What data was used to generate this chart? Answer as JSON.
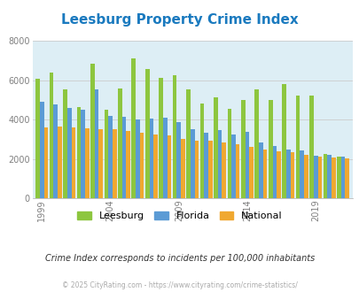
{
  "title": "Leesburg Property Crime Index",
  "title_color": "#1a7abf",
  "years": [
    1999,
    2000,
    2001,
    2002,
    2003,
    2004,
    2005,
    2006,
    2007,
    2008,
    2009,
    2010,
    2011,
    2012,
    2013,
    2014,
    2015,
    2016,
    2017,
    2018,
    2019,
    2020,
    2021
  ],
  "leesburg": [
    6080,
    6390,
    5530,
    4630,
    6850,
    4510,
    5580,
    7100,
    6580,
    6130,
    6280,
    5560,
    4820,
    5130,
    4530,
    5020,
    5530,
    5000,
    5820,
    5240,
    5230,
    2250,
    2120
  ],
  "florida": [
    4920,
    4790,
    4610,
    4510,
    5560,
    4190,
    4140,
    4000,
    4060,
    4110,
    3870,
    3540,
    3340,
    3480,
    3250,
    3380,
    2840,
    2660,
    2490,
    2430,
    2190,
    2210,
    2120
  ],
  "national": [
    3600,
    3640,
    3620,
    3580,
    3500,
    3510,
    3430,
    3340,
    3270,
    3210,
    3040,
    2950,
    2920,
    2860,
    2760,
    2600,
    2490,
    2380,
    2350,
    2230,
    2110,
    2100,
    2050
  ],
  "leesburg_color": "#8dc63f",
  "florida_color": "#5b9bd5",
  "national_color": "#f0a830",
  "bg_color": "#ddeef5",
  "ylim": [
    0,
    8000
  ],
  "yticks": [
    0,
    2000,
    4000,
    6000,
    8000
  ],
  "xlabel_ticks": [
    1999,
    2004,
    2009,
    2014,
    2019
  ],
  "subtitle": "Crime Index corresponds to incidents per 100,000 inhabitants",
  "footer": "© 2025 CityRating.com - https://www.cityrating.com/crime-statistics/",
  "subtitle_color": "#333333",
  "footer_color": "#aaaaaa",
  "grid_color": "#cccccc"
}
